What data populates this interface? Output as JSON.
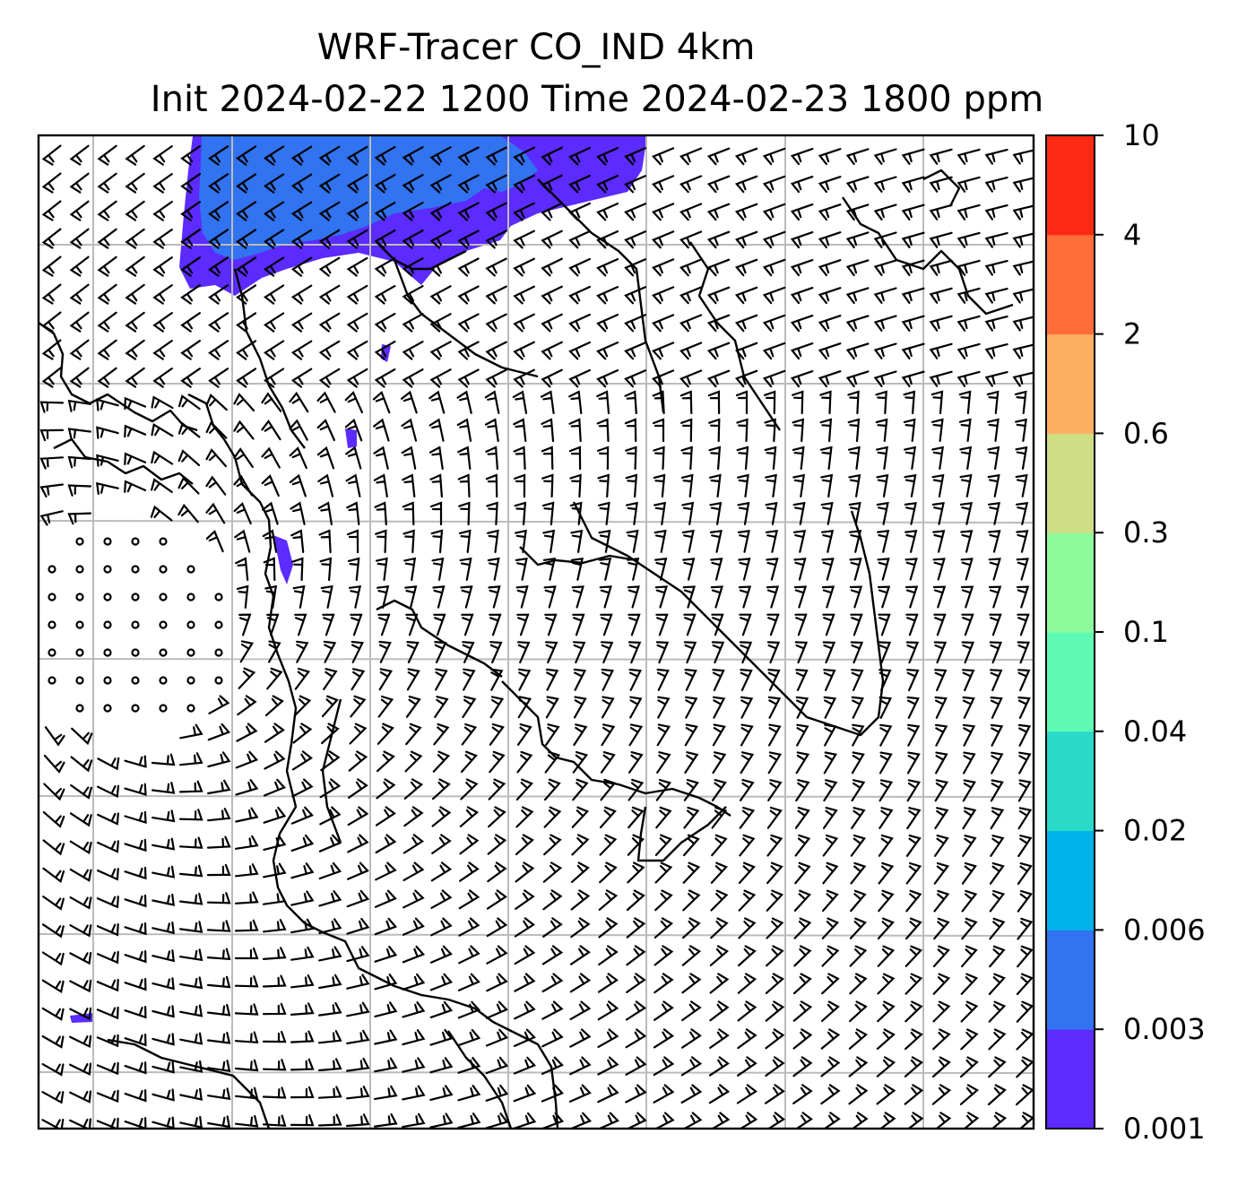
{
  "map": {
    "title_line1": "WRF-Tracer CO_IND 4km",
    "title_line2": "Init 2024-02-22 1200 Time 2024-02-23 1800 ppm",
    "gridlines": true,
    "gridline_color": "#bbbbbb",
    "coastline_color": "#000000",
    "barb_color": "#000000"
  },
  "colorbar": {
    "ticks": [
      "0.001",
      "0.003",
      "0.006",
      "0.02",
      "0.04",
      "0.1",
      "0.3",
      "0.6",
      "2",
      "4",
      "10"
    ],
    "colors": [
      "#5b2bff",
      "#3173f0",
      "#00b2ea",
      "#29dac8",
      "#5ef9b3",
      "#8efb9b",
      "#cfdd84",
      "#fdaf62",
      "#ff6d38",
      "#ff2914"
    ]
  },
  "plume_colors": {
    "low": "#5b2bff",
    "mid": "#3173f0"
  }
}
